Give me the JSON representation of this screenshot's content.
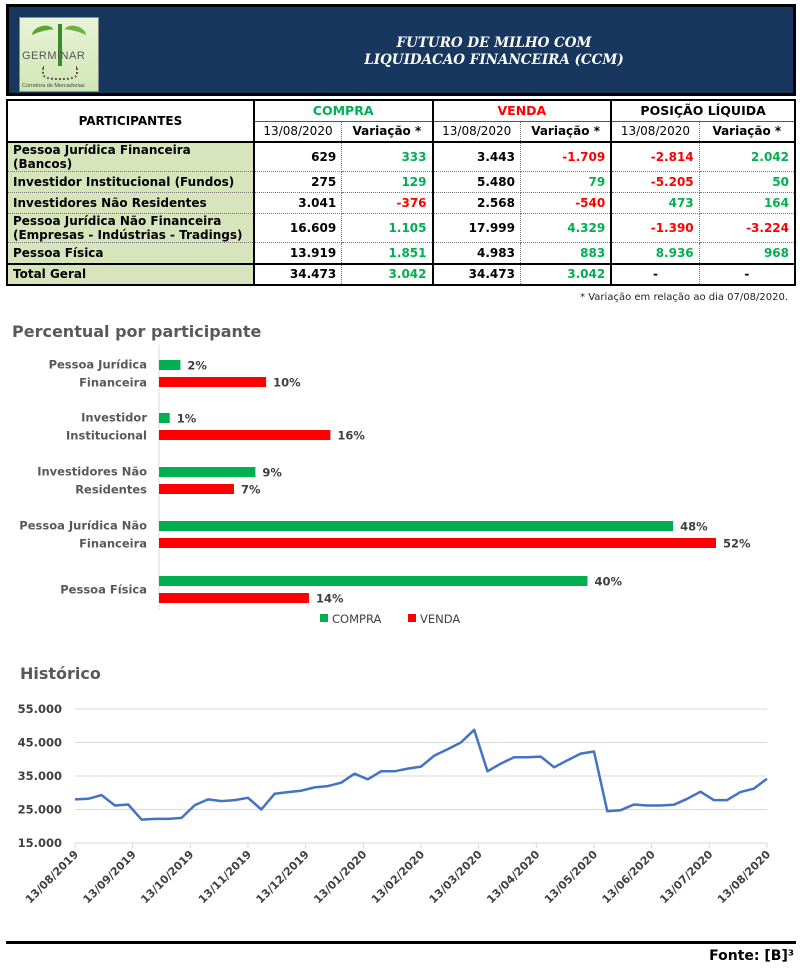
{
  "header": {
    "logo": {
      "name": "GERMINAR",
      "tagline": "Corretora de Mercadorias"
    },
    "title_line1": "FUTURO DE MILHO COM",
    "title_line2": "LIQUIDACAO FINANCEIRA (CCM)"
  },
  "table": {
    "participants_header": "PARTICIPANTES",
    "groups": [
      {
        "label": "COMPRA",
        "color": "#00b050"
      },
      {
        "label": "VENDA",
        "color": "#ff0000"
      },
      {
        "label": "POSIÇÃO LÍQUIDA",
        "color": "#000000"
      }
    ],
    "subheaders": [
      "13/08/2020",
      "Variação *",
      "13/08/2020",
      "Variação *",
      "13/08/2020",
      "Variação *"
    ],
    "rows": [
      {
        "name": "Pessoa Jurídica Financeira (Bancos)",
        "values": [
          "629",
          "333",
          "3.443",
          "-1.709",
          "-2.814",
          "2.042"
        ],
        "colors": [
          "k",
          "g",
          "k",
          "r",
          "r",
          "g"
        ]
      },
      {
        "name": "Investidor Institucional (Fundos)",
        "values": [
          "275",
          "129",
          "5.480",
          "79",
          "-5.205",
          "50"
        ],
        "colors": [
          "k",
          "g",
          "k",
          "g",
          "r",
          "g"
        ]
      },
      {
        "name": "Investidores Não Residentes",
        "values": [
          "3.041",
          "-376",
          "2.568",
          "-540",
          "473",
          "164"
        ],
        "colors": [
          "k",
          "r",
          "k",
          "r",
          "g",
          "g"
        ]
      },
      {
        "name_line1": "Pessoa Jurídica Não Financeira",
        "name_line2": "(Empresas - Indústrias - Tradings)",
        "values": [
          "16.609",
          "1.105",
          "17.999",
          "4.329",
          "-1.390",
          "-3.224"
        ],
        "colors": [
          "k",
          "g",
          "k",
          "g",
          "r",
          "r"
        ]
      },
      {
        "name": "Pessoa Física",
        "values": [
          "13.919",
          "1.851",
          "4.983",
          "883",
          "8.936",
          "968"
        ],
        "colors": [
          "k",
          "g",
          "k",
          "g",
          "g",
          "g"
        ]
      }
    ],
    "total": {
      "name": "Total Geral",
      "values": [
        "34.473",
        "3.042",
        "34.473",
        "3.042",
        "-",
        "-"
      ],
      "colors": [
        "k",
        "g",
        "k",
        "g",
        "k",
        "k"
      ]
    },
    "footnote": "* Variação em relação ao dia 07/08/2020."
  },
  "chart_data": [
    {
      "type": "bar",
      "orientation": "horizontal",
      "title": "Percentual por participante",
      "categories": [
        [
          "Pessoa Jurídica",
          "Financeira"
        ],
        [
          "Investidor",
          "Institucional"
        ],
        [
          "Investidores Não",
          "Residentes"
        ],
        [
          "Pessoa Jurídica Não",
          "Financeira"
        ],
        [
          "Pessoa Física"
        ]
      ],
      "series": [
        {
          "name": "COMPRA",
          "color": "#00b050",
          "values": [
            2,
            1,
            9,
            48,
            40
          ],
          "labels": [
            "2%",
            "1%",
            "9%",
            "48%",
            "40%"
          ]
        },
        {
          "name": "VENDA",
          "color": "#ff0000",
          "values": [
            10,
            16,
            7,
            52,
            14
          ],
          "labels": [
            "10%",
            "16%",
            "7%",
            "52%",
            "14%"
          ]
        }
      ],
      "unit": "%",
      "xlim": [
        0,
        52
      ],
      "legend": "bottom",
      "grid": false
    },
    {
      "type": "line",
      "title": "Histórico",
      "color": "#4472c4",
      "ylim": [
        15000,
        55000
      ],
      "yticks": [
        "15.000",
        "25.000",
        "35.000",
        "45.000",
        "55.000"
      ],
      "ytick_values": [
        15000,
        25000,
        35000,
        45000,
        55000
      ],
      "xticks": [
        "13/08/2019",
        "13/09/2019",
        "13/10/2019",
        "13/11/2019",
        "13/12/2019",
        "13/01/2020",
        "13/02/2020",
        "13/03/2020",
        "13/04/2020",
        "13/05/2020",
        "13/06/2020",
        "13/07/2020",
        "13/08/2020"
      ],
      "grid": true,
      "values": [
        28000,
        28200,
        29300,
        26200,
        26500,
        22000,
        22200,
        22200,
        22500,
        26300,
        28000,
        27500,
        27800,
        28500,
        25000,
        29700,
        30200,
        30600,
        31600,
        32000,
        33000,
        35700,
        34000,
        36400,
        36400,
        37200,
        37800,
        41100,
        43000,
        45000,
        48800,
        36400,
        38700,
        40600,
        40600,
        40800,
        37600,
        39700,
        41700,
        42300,
        24500,
        24800,
        26500,
        26200,
        26200,
        26400,
        28200,
        30300,
        27800,
        27800,
        30200,
        31200,
        34200
      ]
    }
  ],
  "source": "Fonte: [B]³"
}
